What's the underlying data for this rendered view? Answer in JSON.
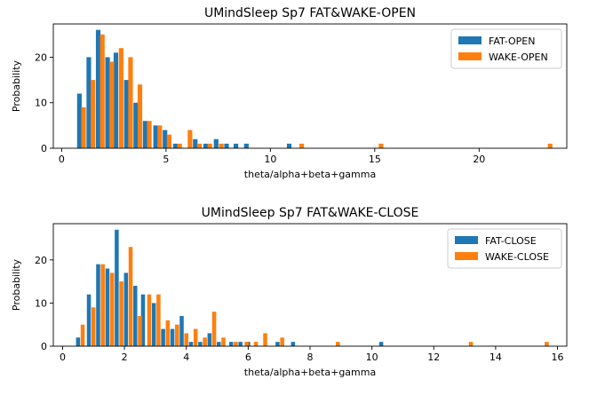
{
  "chart_data": [
    {
      "type": "bar",
      "title": "UMindSleep Sp7 FAT&WAKE-OPEN",
      "xlabel": "theta/alpha+beta+gamma",
      "ylabel": "Probability",
      "xlim": [
        -0.4,
        24.2
      ],
      "ylim": [
        0,
        27.3
      ],
      "xticks": [
        0,
        5,
        10,
        15,
        20
      ],
      "yticks": [
        0,
        10,
        20
      ],
      "grid": false,
      "legend_position": "top-right",
      "bar_width": 0.22,
      "series": [
        {
          "name": "FAT-OPEN",
          "color": "#1f77b4",
          "x": [
            0.85,
            1.3,
            1.75,
            2.2,
            2.6,
            3.1,
            3.55,
            4.0,
            4.5,
            4.95,
            5.45,
            6.4,
            6.9,
            7.4,
            7.9,
            8.35,
            8.85,
            10.9
          ],
          "values": [
            12,
            20,
            26,
            20,
            21,
            15,
            10,
            6,
            5,
            4,
            1,
            2,
            1,
            2,
            1,
            1,
            1,
            1
          ]
        },
        {
          "name": "WAKE-OPEN",
          "color": "#ff7f0e",
          "x": [
            1.05,
            1.5,
            1.95,
            2.4,
            2.85,
            3.3,
            3.75,
            4.2,
            4.7,
            5.15,
            5.65,
            6.15,
            6.6,
            7.1,
            7.65,
            11.5,
            15.3,
            23.4
          ],
          "values": [
            9,
            15,
            25,
            19,
            22,
            20,
            14,
            6,
            5,
            3,
            1,
            4,
            1,
            1,
            1,
            1,
            1,
            1
          ]
        }
      ]
    },
    {
      "type": "bar",
      "title": "UMindSleep Sp7 FAT&WAKE-CLOSE",
      "xlabel": "theta/alpha+beta+gamma",
      "ylabel": "Probability",
      "xlim": [
        -0.3,
        16.3
      ],
      "ylim": [
        0,
        28.4
      ],
      "xticks": [
        0,
        2,
        4,
        6,
        8,
        10,
        12,
        14,
        16
      ],
      "yticks": [
        0,
        10,
        20
      ],
      "grid": false,
      "legend_position": "top-right",
      "bar_width": 0.13,
      "series": [
        {
          "name": "FAT-CLOSE",
          "color": "#1f77b4",
          "x": [
            0.5,
            0.85,
            1.15,
            1.45,
            1.75,
            2.05,
            2.35,
            2.6,
            2.95,
            3.25,
            3.55,
            3.85,
            4.15,
            4.45,
            4.75,
            5.05,
            5.45,
            5.75,
            6.0,
            6.95,
            7.45,
            10.3
          ],
          "values": [
            2,
            12,
            19,
            18,
            27,
            17,
            14,
            12,
            10,
            4,
            4,
            7,
            1,
            1,
            3,
            1,
            1,
            1,
            1,
            1,
            1,
            1
          ]
        },
        {
          "name": "WAKE-CLOSE",
          "color": "#ff7f0e",
          "x": [
            0.65,
            1.0,
            1.3,
            1.6,
            1.9,
            2.2,
            2.5,
            2.8,
            3.1,
            3.4,
            3.7,
            4.0,
            4.3,
            4.6,
            4.9,
            5.2,
            5.6,
            5.95,
            6.25,
            6.55,
            7.1,
            8.9,
            13.2,
            15.65
          ],
          "values": [
            5,
            9,
            19,
            17,
            15,
            23,
            7,
            12,
            12,
            6,
            5,
            3,
            4,
            2,
            8,
            2,
            1,
            1,
            1,
            3,
            2,
            1,
            1,
            1
          ]
        }
      ]
    }
  ]
}
